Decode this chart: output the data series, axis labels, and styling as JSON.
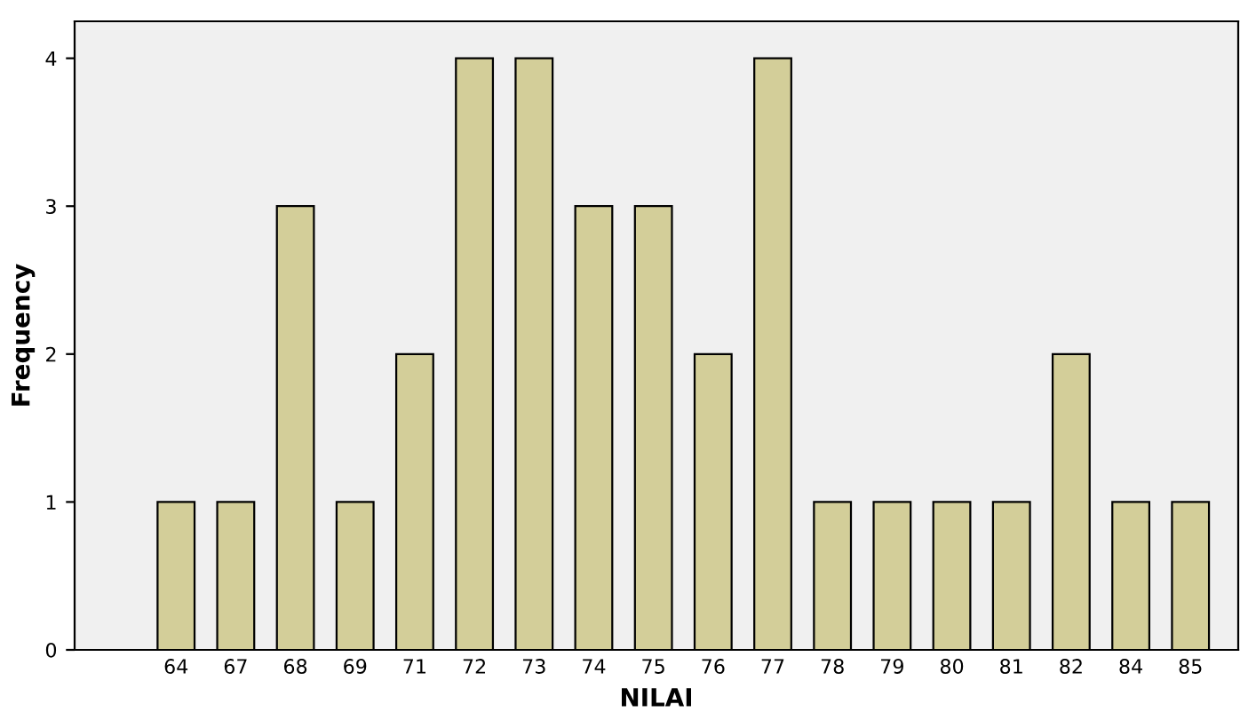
{
  "chart_data": {
    "type": "bar",
    "xlabel": "NILAI",
    "ylabel": "Frequency",
    "categories": [
      "64",
      "67",
      "68",
      "69",
      "71",
      "72",
      "73",
      "74",
      "75",
      "76",
      "77",
      "78",
      "79",
      "80",
      "81",
      "82",
      "84",
      "85"
    ],
    "values": [
      1,
      1,
      3,
      1,
      2,
      4,
      4,
      3,
      3,
      2,
      4,
      1,
      1,
      1,
      1,
      2,
      1,
      1
    ],
    "color": "#d3ce99",
    "ylim": [
      0,
      4.25
    ],
    "yticks": [
      0,
      1,
      2,
      3,
      4
    ],
    "grid": false
  }
}
